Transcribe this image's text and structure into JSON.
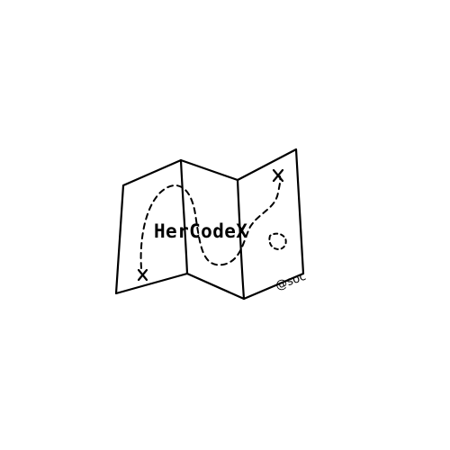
{
  "logo": {
    "brand_name": "HerCodeX",
    "handle": "@soc",
    "icon": "folded-treasure-map-icon",
    "colors": {
      "ink": "#000000",
      "background": "#ffffff"
    }
  }
}
